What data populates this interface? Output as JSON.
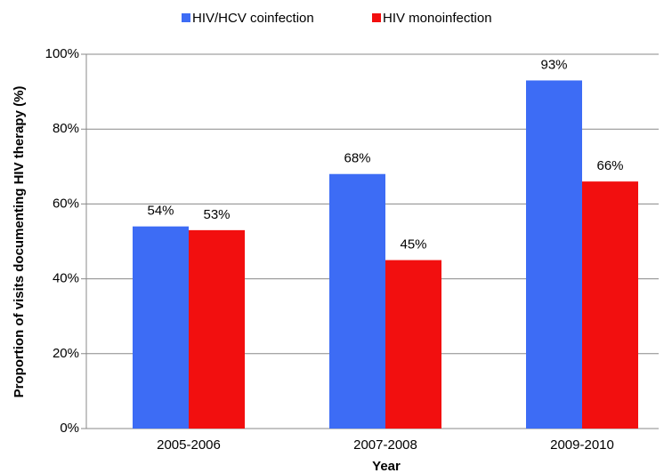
{
  "chart_data": {
    "type": "bar",
    "categories": [
      "2005-2006",
      "2007-2008",
      "2009-2010"
    ],
    "series": [
      {
        "name": "HIV/HCV coinfection",
        "color": "#3d6cf5",
        "values": [
          54,
          68,
          93
        ],
        "value_labels": [
          "54%",
          "68%",
          "93%"
        ]
      },
      {
        "name": "HIV monoinfection",
        "color": "#f20f0f",
        "values": [
          53,
          45,
          66
        ],
        "value_labels": [
          "53%",
          "45%",
          "66%"
        ]
      }
    ],
    "xlabel": "Year",
    "ylabel": "Proportion of visits documenting HIV therapy (%)",
    "ylim": [
      0,
      100
    ],
    "yticks": [
      {
        "value": 0,
        "label": "0%"
      },
      {
        "value": 20,
        "label": "20%"
      },
      {
        "value": 40,
        "label": "40%"
      },
      {
        "value": 60,
        "label": "60%"
      },
      {
        "value": 80,
        "label": "80%"
      },
      {
        "value": 100,
        "label": "100%"
      }
    ],
    "grid": true,
    "legend": "top"
  }
}
